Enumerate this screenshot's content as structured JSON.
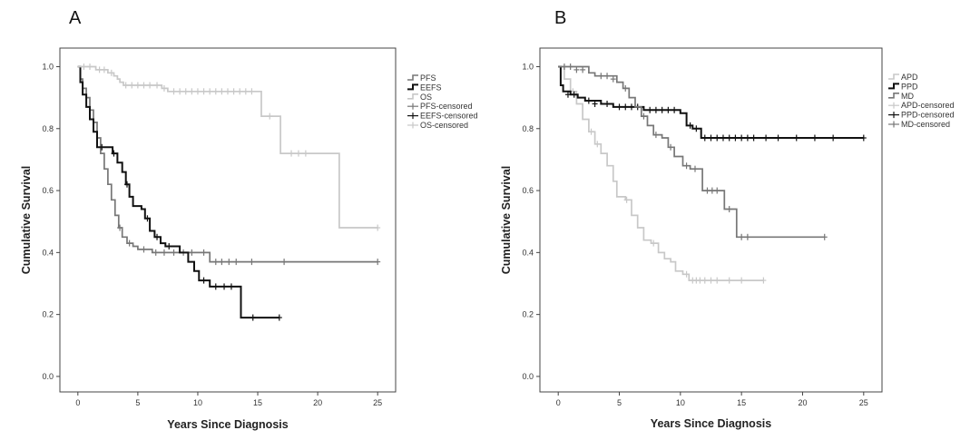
{
  "chart_data": [
    {
      "panel_label": "A",
      "type": "line",
      "step": true,
      "xlabel": "Years Since Diagnosis",
      "ylabel": "Cumulative Survival",
      "xlim": [
        -1.5,
        26.5
      ],
      "ylim": [
        -0.05,
        1.06
      ],
      "xticks": [
        0,
        5,
        10,
        15,
        20,
        25
      ],
      "yticks": [
        0.0,
        0.2,
        0.4,
        0.6,
        0.8,
        1.0
      ],
      "ytick_labels": [
        "0.0",
        "0.2",
        "0.4",
        "0.6",
        "0.8",
        "1.0"
      ],
      "grid": false,
      "legend_position": "right",
      "legend": [
        "PFS",
        "EEFS",
        "OS",
        "PFS-censored",
        "EEFS-censored",
        "OS-censored"
      ],
      "series": [
        {
          "name": "PFS",
          "color": "#777777",
          "steps": [
            [
              0,
              1.0
            ],
            [
              0.2,
              0.96
            ],
            [
              0.4,
              0.93
            ],
            [
              0.7,
              0.9
            ],
            [
              1.0,
              0.86
            ],
            [
              1.3,
              0.82
            ],
            [
              1.6,
              0.77
            ],
            [
              1.9,
              0.72
            ],
            [
              2.2,
              0.67
            ],
            [
              2.5,
              0.62
            ],
            [
              2.8,
              0.57
            ],
            [
              3.1,
              0.52
            ],
            [
              3.4,
              0.48
            ],
            [
              3.7,
              0.45
            ],
            [
              4.1,
              0.43
            ],
            [
              4.6,
              0.42
            ],
            [
              5.0,
              0.41
            ],
            [
              6.2,
              0.4
            ],
            [
              10.1,
              0.4
            ],
            [
              11.0,
              0.37
            ],
            [
              25.0,
              0.37
            ]
          ],
          "censored": [
            [
              3.5,
              0.48
            ],
            [
              4.3,
              0.43
            ],
            [
              5.5,
              0.41
            ],
            [
              6.5,
              0.4
            ],
            [
              7.2,
              0.4
            ],
            [
              8.0,
              0.4
            ],
            [
              8.8,
              0.4
            ],
            [
              9.5,
              0.4
            ],
            [
              10.5,
              0.4
            ],
            [
              11.5,
              0.37
            ],
            [
              12.0,
              0.37
            ],
            [
              12.6,
              0.37
            ],
            [
              13.2,
              0.37
            ],
            [
              14.5,
              0.37
            ],
            [
              17.2,
              0.37
            ],
            [
              25.0,
              0.37
            ]
          ]
        },
        {
          "name": "EEFS",
          "color": "#111111",
          "steps": [
            [
              0,
              1.0
            ],
            [
              0.2,
              0.95
            ],
            [
              0.4,
              0.91
            ],
            [
              0.7,
              0.87
            ],
            [
              1.0,
              0.83
            ],
            [
              1.3,
              0.79
            ],
            [
              1.6,
              0.74
            ],
            [
              2.4,
              0.74
            ],
            [
              2.9,
              0.72
            ],
            [
              3.3,
              0.69
            ],
            [
              3.7,
              0.66
            ],
            [
              4.0,
              0.62
            ],
            [
              4.3,
              0.58
            ],
            [
              4.6,
              0.55
            ],
            [
              5.3,
              0.54
            ],
            [
              5.6,
              0.51
            ],
            [
              6.0,
              0.47
            ],
            [
              6.4,
              0.45
            ],
            [
              6.9,
              0.43
            ],
            [
              7.3,
              0.42
            ],
            [
              8.5,
              0.4
            ],
            [
              9.2,
              0.37
            ],
            [
              9.7,
              0.34
            ],
            [
              10.1,
              0.31
            ],
            [
              11.0,
              0.29
            ],
            [
              13.6,
              0.19
            ],
            [
              16.8,
              0.19
            ]
          ],
          "censored": [
            [
              2.0,
              0.74
            ],
            [
              3.0,
              0.72
            ],
            [
              4.1,
              0.62
            ],
            [
              5.8,
              0.51
            ],
            [
              6.6,
              0.45
            ],
            [
              7.6,
              0.42
            ],
            [
              10.5,
              0.31
            ],
            [
              11.5,
              0.29
            ],
            [
              12.2,
              0.29
            ],
            [
              12.8,
              0.29
            ],
            [
              14.6,
              0.19
            ],
            [
              16.8,
              0.19
            ]
          ]
        },
        {
          "name": "OS",
          "color": "#c8c8c8",
          "steps": [
            [
              0,
              1.0
            ],
            [
              1.5,
              0.99
            ],
            [
              2.5,
              0.98
            ],
            [
              3.0,
              0.97
            ],
            [
              3.3,
              0.96
            ],
            [
              3.5,
              0.95
            ],
            [
              3.8,
              0.94
            ],
            [
              7.0,
              0.93
            ],
            [
              7.5,
              0.92
            ],
            [
              15.3,
              0.84
            ],
            [
              16.9,
              0.72
            ],
            [
              21.8,
              0.48
            ],
            [
              25.0,
              0.48
            ]
          ],
          "censored": [
            [
              0.5,
              1.0
            ],
            [
              1.0,
              1.0
            ],
            [
              1.8,
              0.99
            ],
            [
              2.2,
              0.99
            ],
            [
              2.8,
              0.98
            ],
            [
              4.0,
              0.94
            ],
            [
              4.5,
              0.94
            ],
            [
              5.0,
              0.94
            ],
            [
              5.5,
              0.94
            ],
            [
              6.0,
              0.94
            ],
            [
              6.6,
              0.94
            ],
            [
              7.2,
              0.93
            ],
            [
              8.0,
              0.92
            ],
            [
              8.5,
              0.92
            ],
            [
              9.0,
              0.92
            ],
            [
              9.5,
              0.92
            ],
            [
              10.0,
              0.92
            ],
            [
              10.5,
              0.92
            ],
            [
              11.0,
              0.92
            ],
            [
              11.5,
              0.92
            ],
            [
              12.0,
              0.92
            ],
            [
              12.5,
              0.92
            ],
            [
              13.0,
              0.92
            ],
            [
              13.5,
              0.92
            ],
            [
              14.0,
              0.92
            ],
            [
              14.5,
              0.92
            ],
            [
              16.0,
              0.84
            ],
            [
              17.8,
              0.72
            ],
            [
              18.4,
              0.72
            ],
            [
              19.0,
              0.72
            ],
            [
              25.0,
              0.48
            ]
          ]
        }
      ]
    },
    {
      "panel_label": "B",
      "type": "line",
      "step": true,
      "xlabel": "Years Since Diagnosis",
      "ylabel": "Cumulative Survival",
      "xlim": [
        -1.5,
        26.5
      ],
      "ylim": [
        -0.05,
        1.06
      ],
      "xticks": [
        0,
        5,
        10,
        15,
        20,
        25
      ],
      "yticks": [
        0.0,
        0.2,
        0.4,
        0.6,
        0.8,
        1.0
      ],
      "ytick_labels": [
        "0.0",
        "0.2",
        "0.4",
        "0.6",
        "0.8",
        "1.0"
      ],
      "grid": false,
      "legend_position": "right",
      "legend": [
        "APD",
        "PPD",
        "MD",
        "APD-censored",
        "PPD-censored",
        "MD-censored"
      ],
      "series": [
        {
          "name": "APD",
          "color": "#c8c8c8",
          "steps": [
            [
              0,
              1.0
            ],
            [
              0.5,
              0.96
            ],
            [
              1.0,
              0.92
            ],
            [
              1.5,
              0.88
            ],
            [
              2.0,
              0.83
            ],
            [
              2.5,
              0.79
            ],
            [
              3.0,
              0.75
            ],
            [
              3.5,
              0.72
            ],
            [
              4.0,
              0.68
            ],
            [
              4.5,
              0.63
            ],
            [
              4.8,
              0.58
            ],
            [
              5.5,
              0.57
            ],
            [
              6.0,
              0.52
            ],
            [
              6.5,
              0.48
            ],
            [
              7.0,
              0.44
            ],
            [
              7.6,
              0.43
            ],
            [
              8.2,
              0.4
            ],
            [
              8.7,
              0.38
            ],
            [
              9.2,
              0.37
            ],
            [
              9.6,
              0.34
            ],
            [
              10.2,
              0.33
            ],
            [
              10.7,
              0.31
            ],
            [
              16.8,
              0.31
            ]
          ],
          "censored": [
            [
              1.2,
              0.92
            ],
            [
              2.7,
              0.79
            ],
            [
              3.2,
              0.75
            ],
            [
              5.6,
              0.57
            ],
            [
              7.8,
              0.43
            ],
            [
              10.5,
              0.33
            ],
            [
              11.0,
              0.31
            ],
            [
              11.3,
              0.31
            ],
            [
              11.6,
              0.31
            ],
            [
              12.0,
              0.31
            ],
            [
              12.5,
              0.31
            ],
            [
              13.0,
              0.31
            ],
            [
              14.0,
              0.31
            ],
            [
              15.0,
              0.31
            ],
            [
              16.8,
              0.31
            ]
          ]
        },
        {
          "name": "PPD",
          "color": "#111111",
          "steps": [
            [
              0,
              1.0
            ],
            [
              0.2,
              0.94
            ],
            [
              0.4,
              0.92
            ],
            [
              1.0,
              0.91
            ],
            [
              1.6,
              0.9
            ],
            [
              2.2,
              0.89
            ],
            [
              3.5,
              0.88
            ],
            [
              4.5,
              0.87
            ],
            [
              7.0,
              0.86
            ],
            [
              10.0,
              0.85
            ],
            [
              10.5,
              0.81
            ],
            [
              11.0,
              0.8
            ],
            [
              11.7,
              0.77
            ],
            [
              25.0,
              0.77
            ]
          ],
          "censored": [
            [
              0.8,
              0.91
            ],
            [
              1.3,
              0.91
            ],
            [
              2.5,
              0.89
            ],
            [
              3.0,
              0.88
            ],
            [
              4.0,
              0.88
            ],
            [
              5.0,
              0.87
            ],
            [
              5.5,
              0.87
            ],
            [
              6.0,
              0.87
            ],
            [
              6.5,
              0.87
            ],
            [
              7.5,
              0.86
            ],
            [
              8.0,
              0.86
            ],
            [
              8.5,
              0.86
            ],
            [
              9.0,
              0.86
            ],
            [
              9.5,
              0.86
            ],
            [
              10.8,
              0.81
            ],
            [
              11.3,
              0.8
            ],
            [
              12.0,
              0.77
            ],
            [
              12.5,
              0.77
            ],
            [
              13.0,
              0.77
            ],
            [
              13.5,
              0.77
            ],
            [
              14.0,
              0.77
            ],
            [
              14.5,
              0.77
            ],
            [
              15.0,
              0.77
            ],
            [
              15.5,
              0.77
            ],
            [
              16.0,
              0.77
            ],
            [
              17.0,
              0.77
            ],
            [
              18.0,
              0.77
            ],
            [
              19.5,
              0.77
            ],
            [
              21.0,
              0.77
            ],
            [
              22.5,
              0.77
            ],
            [
              25.0,
              0.77
            ]
          ]
        },
        {
          "name": "MD",
          "color": "#777777",
          "steps": [
            [
              0,
              1.0
            ],
            [
              2.5,
              0.98
            ],
            [
              3.0,
              0.97
            ],
            [
              4.8,
              0.95
            ],
            [
              5.3,
              0.93
            ],
            [
              5.8,
              0.9
            ],
            [
              6.3,
              0.87
            ],
            [
              6.8,
              0.84
            ],
            [
              7.3,
              0.81
            ],
            [
              7.8,
              0.78
            ],
            [
              8.5,
              0.77
            ],
            [
              9.0,
              0.74
            ],
            [
              9.5,
              0.71
            ],
            [
              10.2,
              0.68
            ],
            [
              10.8,
              0.67
            ],
            [
              11.8,
              0.6
            ],
            [
              12.9,
              0.6
            ],
            [
              13.6,
              0.54
            ],
            [
              14.6,
              0.45
            ],
            [
              21.8,
              0.45
            ]
          ],
          "censored": [
            [
              0.5,
              1.0
            ],
            [
              1.0,
              1.0
            ],
            [
              1.5,
              0.99
            ],
            [
              2.0,
              0.99
            ],
            [
              3.5,
              0.97
            ],
            [
              4.0,
              0.97
            ],
            [
              4.5,
              0.96
            ],
            [
              5.5,
              0.93
            ],
            [
              7.0,
              0.84
            ],
            [
              8.0,
              0.78
            ],
            [
              9.2,
              0.74
            ],
            [
              10.5,
              0.68
            ],
            [
              11.2,
              0.67
            ],
            [
              12.2,
              0.6
            ],
            [
              12.6,
              0.6
            ],
            [
              13.0,
              0.6
            ],
            [
              14.0,
              0.54
            ],
            [
              15.0,
              0.45
            ],
            [
              15.5,
              0.45
            ],
            [
              21.8,
              0.45
            ]
          ]
        }
      ]
    }
  ]
}
